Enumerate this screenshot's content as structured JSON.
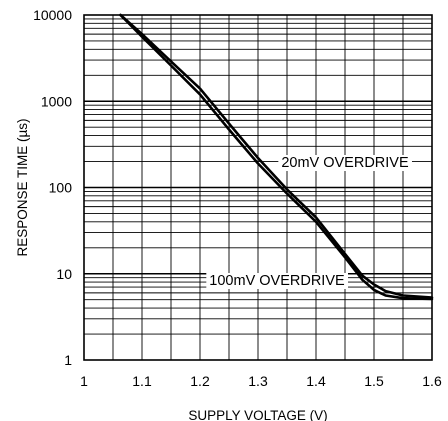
{
  "chart_data": {
    "type": "line",
    "title": "",
    "xlabel": "SUPPLY VOLTAGE (V)",
    "ylabel": "RESPONSE TIME (µs)",
    "xlim": [
      1,
      1.6
    ],
    "ylim": [
      1,
      10000
    ],
    "y_scale": "log",
    "grid": true,
    "x_ticks": [
      "1",
      "1.1",
      "1.2",
      "1.3",
      "1.4",
      "1.5",
      "1.6"
    ],
    "y_ticks": [
      "1",
      "10",
      "100",
      "1000",
      "10000"
    ],
    "series": [
      {
        "name": "20mV OVERDRIVE",
        "x": [
          1.063,
          1.1,
          1.15,
          1.2,
          1.25,
          1.3,
          1.35,
          1.4,
          1.45,
          1.48,
          1.5,
          1.52,
          1.55,
          1.6
        ],
        "y": [
          10000,
          6000,
          2900,
          1400,
          550,
          220,
          95,
          45,
          17,
          9.5,
          7.5,
          6.3,
          5.6,
          5.3
        ]
      },
      {
        "name": "100mV OVERDRIVE",
        "x": [
          1.063,
          1.1,
          1.15,
          1.2,
          1.25,
          1.3,
          1.35,
          1.4,
          1.45,
          1.48,
          1.5,
          1.52,
          1.55,
          1.6
        ],
        "y": [
          10000,
          5600,
          2600,
          1200,
          470,
          190,
          85,
          40,
          15.5,
          8.5,
          6.5,
          5.6,
          5.2,
          5.1
        ]
      }
    ],
    "annotations": [
      "20mV OVERDRIVE",
      "100mV OVERDRIVE"
    ]
  }
}
